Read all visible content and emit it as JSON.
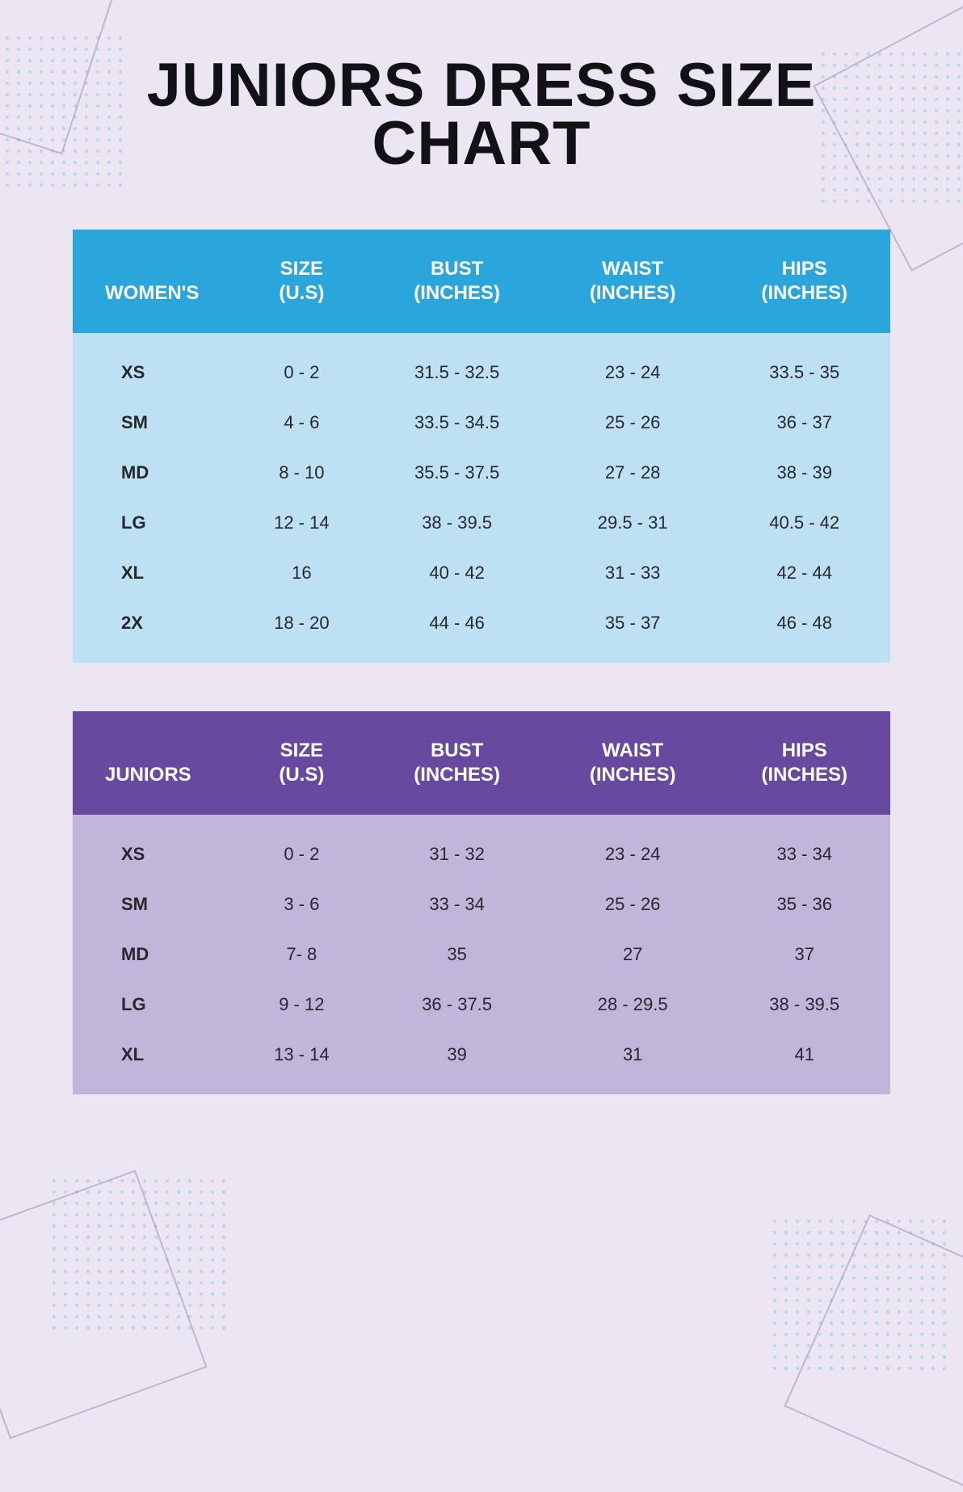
{
  "title": "JUNIORS DRESS\nSIZE CHART",
  "colors": {
    "page_bg": "#ebe6f2",
    "title_color": "#111215",
    "womens_header_bg": "#2aa6dd",
    "womens_body_bg": "#bde1f2",
    "juniors_header_bg": "#67499f",
    "juniors_body_bg": "#c2b5da",
    "header_text": "#ffffff",
    "body_text": "#26282c",
    "deco_line": "#8a7fa8",
    "deco_dot": "#a8d8ec"
  },
  "typography": {
    "title_fontsize_pt": 57,
    "header_fontsize_pt": 18,
    "body_fontsize_pt": 16,
    "title_font_family": "Impact",
    "body_font_family": "Arial"
  },
  "tables": {
    "womens": {
      "type": "table",
      "columns": [
        {
          "label": "WOMEN'S",
          "width_pct": 20,
          "align": "left"
        },
        {
          "label": "SIZE\n(U.S)",
          "width_pct": 16,
          "align": "center"
        },
        {
          "label": "BUST\n(INCHES)",
          "width_pct": 22,
          "align": "center"
        },
        {
          "label": "WAIST\n(INCHES)",
          "width_pct": 21,
          "align": "center"
        },
        {
          "label": "HIPS\n(INCHES)",
          "width_pct": 21,
          "align": "center"
        }
      ],
      "rows": [
        [
          "XS",
          "0 - 2",
          "31.5 - 32.5",
          "23 - 24",
          "33.5 - 35"
        ],
        [
          "SM",
          "4 - 6",
          "33.5 - 34.5",
          "25 - 26",
          "36 - 37"
        ],
        [
          "MD",
          "8 - 10",
          "35.5 - 37.5",
          "27 - 28",
          "38 - 39"
        ],
        [
          "LG",
          "12 - 14",
          "38 - 39.5",
          "29.5 - 31",
          "40.5 - 42"
        ],
        [
          "XL",
          "16",
          "40 - 42",
          "31 - 33",
          "42 - 44"
        ],
        [
          "2X",
          "18 - 20",
          "44 - 46",
          "35 - 37",
          "46 - 48"
        ]
      ]
    },
    "juniors": {
      "type": "table",
      "columns": [
        {
          "label": "JUNIORS",
          "width_pct": 20,
          "align": "left"
        },
        {
          "label": "SIZE\n(U.S)",
          "width_pct": 16,
          "align": "center"
        },
        {
          "label": "BUST\n(INCHES)",
          "width_pct": 22,
          "align": "center"
        },
        {
          "label": "WAIST\n(INCHES)",
          "width_pct": 21,
          "align": "center"
        },
        {
          "label": "HIPS\n(INCHES)",
          "width_pct": 21,
          "align": "center"
        }
      ],
      "rows": [
        [
          "XS",
          "0 - 2",
          "31 - 32",
          "23 - 24",
          "33 - 34"
        ],
        [
          "SM",
          "3 - 6",
          "33 - 34",
          "25 - 26",
          "35 - 36"
        ],
        [
          "MD",
          "7- 8",
          "35",
          "27",
          "37"
        ],
        [
          "LG",
          "9 - 12",
          "36 - 37.5",
          "28 - 29.5",
          "38 - 39.5"
        ],
        [
          "XL",
          "13 - 14",
          "39",
          "31",
          "41"
        ]
      ]
    }
  }
}
